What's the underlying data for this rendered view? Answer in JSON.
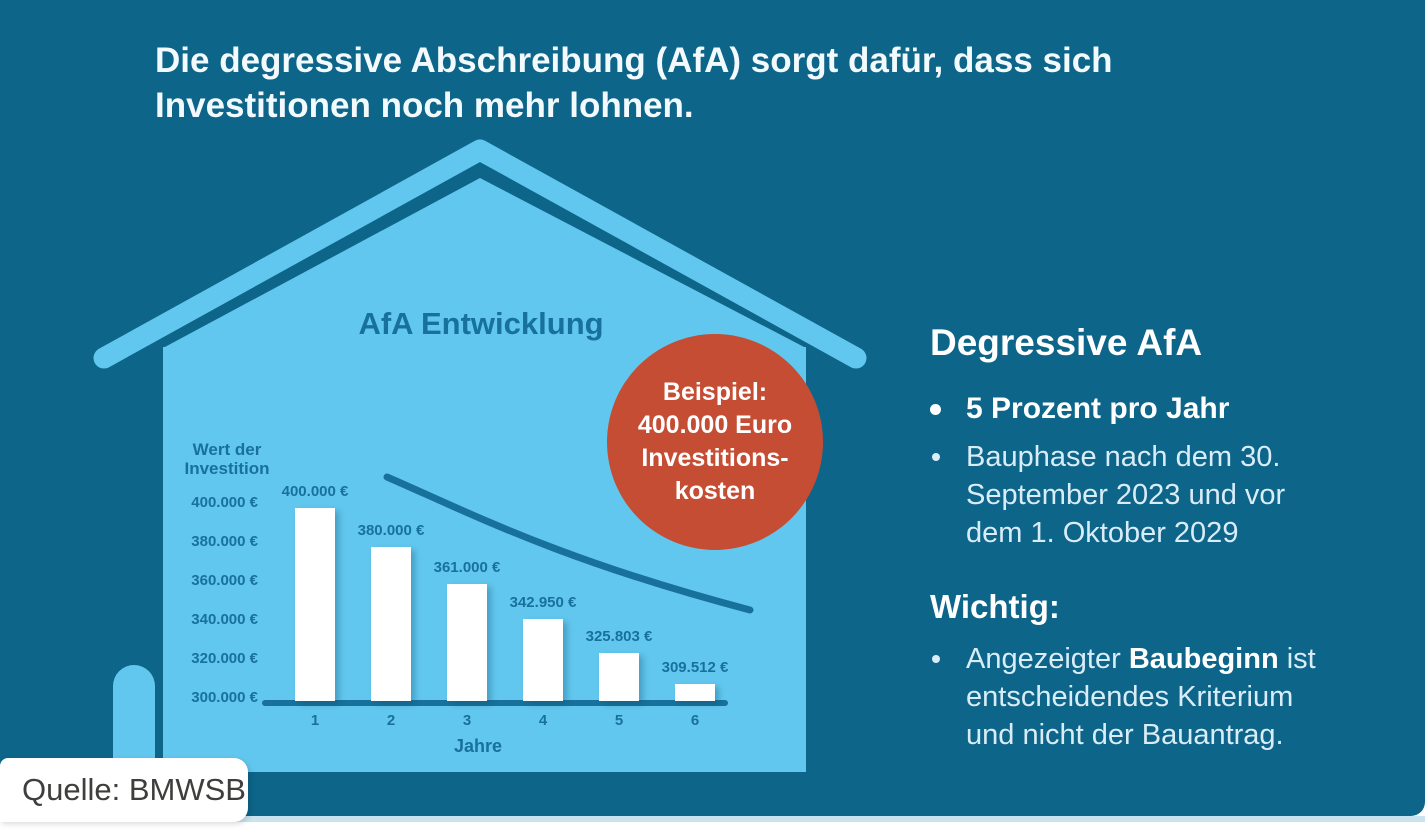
{
  "headline": {
    "lines": [
      "Die degressive Abschreibung (AfA) sorgt dafür, dass sich",
      "Investitionen noch mehr lohnen."
    ]
  },
  "badge": {
    "lines": [
      "Beispiel:",
      "400.000 Euro",
      "Investitions-",
      "kosten"
    ]
  },
  "chart_data": {
    "type": "bar",
    "title": "AfA Entwicklung",
    "ylabel": "Wert der Investition",
    "xlabel": "Jahre",
    "categories": [
      "1",
      "2",
      "3",
      "4",
      "5",
      "6"
    ],
    "values": [
      400000,
      380000,
      361000,
      342950,
      325803,
      309512
    ],
    "bar_labels": [
      "400.000 €",
      "380.000 €",
      "361.000 €",
      "342.950 €",
      "325.803 €",
      "309.512 €"
    ],
    "y_ticks": [
      "400.000 €",
      "380.000 €",
      "360.000 €",
      "340.000 €",
      "320.000 €",
      "300.000 €"
    ],
    "y_tick_values": [
      400000,
      380000,
      360000,
      340000,
      320000,
      300000
    ],
    "ylim": [
      300000,
      400000
    ],
    "grid": false,
    "legend": "none",
    "annotations": "decreasing exponential trend curve overlaid on bars"
  },
  "panel": {
    "heading": "Degressive AfA",
    "bullets": [
      {
        "bold": true,
        "lines": [
          "5 Prozent pro Jahr"
        ]
      },
      {
        "bold": false,
        "lines": [
          "Bauphase nach dem 30.",
          "September 2023 und vor",
          "dem 1. Oktober 2029"
        ]
      }
    ],
    "important_heading": "Wichtig:",
    "important_bullets": [
      {
        "bold": false,
        "lines": [
          "Angezeigter **Baubeginn** ist",
          "entscheidendes Kriterium",
          "und nicht der Bauantrag."
        ]
      }
    ]
  },
  "source": {
    "label": "Quelle: BMWSB"
  },
  "colors": {
    "bg": "#0d6589",
    "light": "#62c7ee",
    "ink": "#18719a",
    "red": "#c54d33",
    "white": "#ffffff",
    "headline": "#f2fafd",
    "body": "#d9edf8",
    "bar": "#ffffff",
    "stripline": "#c9e4ef",
    "source": "#3e3e3c"
  }
}
